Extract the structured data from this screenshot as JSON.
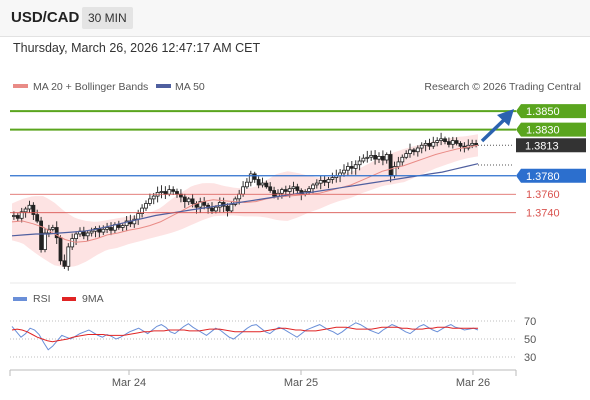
{
  "header": {
    "pair": "USD/CAD",
    "timeframe": "30 MIN"
  },
  "timestamp": "Thursday, March 26, 2026 12:47:17 AM CET",
  "legend": {
    "ma20_bb": "MA 20 + Bollinger Bands",
    "ma50": "MA 50",
    "rsi": "RSI",
    "ma9": "9MA"
  },
  "credit": "Research © 2026 Trading Central",
  "colors": {
    "resistance": "#5aa51e",
    "support": "#2c6fce",
    "minor": "#d9534f",
    "price": "#333333",
    "ma20": "#e98b86",
    "band": "#fde3e3",
    "ma50": "#4f5f9f",
    "rsi": "#6a8fd8",
    "ma9": "#e02424"
  },
  "chart_data": [
    {
      "type": "candlestick",
      "x_ticks": [
        "Mar 24",
        "Mar 25",
        "Mar 26"
      ],
      "ylim": [
        1.3665,
        1.3862
      ],
      "close_path": [
        1.3737,
        1.3734,
        1.3741,
        1.3744,
        1.3748,
        1.3738,
        1.3731,
        1.37,
        1.3718,
        1.3722,
        1.3724,
        1.3713,
        1.3688,
        1.3682,
        1.3703,
        1.3712,
        1.3717,
        1.372,
        1.3715,
        1.3718,
        1.372,
        1.3723,
        1.3719,
        1.3722,
        1.3724,
        1.3721,
        1.3727,
        1.3724,
        1.3726,
        1.3731,
        1.3728,
        1.3733,
        1.3739,
        1.3745,
        1.375,
        1.3755,
        1.3758,
        1.3762,
        1.3763,
        1.376,
        1.3765,
        1.3763,
        1.376,
        1.3757,
        1.3752,
        1.3755,
        1.375,
        1.3746,
        1.3752,
        1.3748,
        1.3745,
        1.3742,
        1.3746,
        1.3751,
        1.3747,
        1.3742,
        1.3749,
        1.3755,
        1.376,
        1.3768,
        1.3773,
        1.3782,
        1.3776,
        1.377,
        1.3772,
        1.3768,
        1.3764,
        1.3758,
        1.3761,
        1.3765,
        1.3763,
        1.3766,
        1.3768,
        1.3764,
        1.376,
        1.3763,
        1.3766,
        1.377,
        1.3772,
        1.3775,
        1.3773,
        1.3776,
        1.3778,
        1.378,
        1.3783,
        1.3786,
        1.379,
        1.3788,
        1.3792,
        1.3796,
        1.3799,
        1.38,
        1.3802,
        1.3798,
        1.3801,
        1.3797,
        1.3803,
        1.378,
        1.379,
        1.3795,
        1.38,
        1.3804,
        1.3808,
        1.3806,
        1.381,
        1.3813,
        1.3815,
        1.3812,
        1.3816,
        1.3818,
        1.382,
        1.3817,
        1.3814,
        1.3818,
        1.3815,
        1.3812,
        1.381,
        1.3813,
        1.3815,
        1.3813
      ],
      "ma20": [
        1.373,
        1.3731,
        1.3728,
        1.3724,
        1.3717,
        1.3711,
        1.3708,
        1.3709,
        1.3712,
        1.3716,
        1.3718,
        1.3721,
        1.3723,
        1.3726,
        1.373,
        1.3736,
        1.3742,
        1.3748,
        1.3752,
        1.3754,
        1.3753,
        1.3752,
        1.3751,
        1.3752,
        1.3755,
        1.3757,
        1.3758,
        1.3759,
        1.376,
        1.3761,
        1.3764,
        1.3767,
        1.377,
        1.3775,
        1.378,
        1.3785,
        1.3788,
        1.3791,
        1.3795,
        1.3799,
        1.3803,
        1.3806,
        1.3809,
        1.3811,
        1.3813
      ],
      "ma50": [
        1.3715,
        1.3716,
        1.3717,
        1.3717,
        1.3718,
        1.3719,
        1.372,
        1.3722,
        1.3725,
        1.3728,
        1.3731,
        1.3734,
        1.3737,
        1.3739,
        1.3741,
        1.3743,
        1.3745,
        1.3747,
        1.3749,
        1.3751,
        1.3753,
        1.3755,
        1.3757,
        1.3759,
        1.3761,
        1.3762,
        1.3764,
        1.3766,
        1.3768,
        1.377,
        1.3772,
        1.3774,
        1.3776,
        1.3778,
        1.378,
        1.3782,
        1.3784,
        1.3787,
        1.379,
        1.3793
      ],
      "bb_half_width": [
        0.002,
        0.0024,
        0.003,
        0.0034,
        0.0034,
        0.003,
        0.0026,
        0.0022,
        0.0018,
        0.0016,
        0.0016,
        0.0015,
        0.0014,
        0.0014,
        0.0015,
        0.0018,
        0.002,
        0.0021,
        0.002,
        0.0018,
        0.0016,
        0.0015,
        0.0015,
        0.0016,
        0.002,
        0.0025,
        0.0027,
        0.0024,
        0.002,
        0.0017,
        0.0015,
        0.0014,
        0.0014,
        0.0014,
        0.0015,
        0.0016,
        0.0017,
        0.0018,
        0.0017,
        0.0016,
        0.0015,
        0.0014,
        0.0013,
        0.0012,
        0.0012
      ],
      "levels": [
        {
          "value": 1.385,
          "label": "1.3850",
          "kind": "resistance"
        },
        {
          "value": 1.383,
          "label": "1.3830",
          "kind": "resistance"
        },
        {
          "value": 1.3813,
          "label": "1.3813",
          "kind": "price"
        },
        {
          "value": 1.378,
          "label": "1.3780",
          "kind": "support"
        },
        {
          "value": 1.376,
          "label": "1.3760",
          "kind": "minor"
        },
        {
          "value": 1.374,
          "label": "1.3740",
          "kind": "minor"
        }
      ],
      "forecast_arrow": "up"
    },
    {
      "type": "line",
      "y_ticks": [
        70,
        50,
        30
      ],
      "ylim": [
        20,
        80
      ],
      "rsi": [
        64,
        58,
        52,
        56,
        62,
        60,
        55,
        46,
        38,
        42,
        48,
        54,
        52,
        50,
        53,
        56,
        58,
        60,
        57,
        54,
        52,
        55,
        53,
        50,
        52,
        55,
        58,
        60,
        62,
        59,
        56,
        60,
        64,
        66,
        63,
        58,
        56,
        60,
        64,
        67,
        63,
        60,
        57,
        54,
        58,
        62,
        60,
        56,
        52,
        50,
        54,
        58,
        62,
        65,
        66,
        62,
        58,
        56,
        60,
        63,
        61,
        58,
        55,
        52,
        56,
        60,
        62,
        64,
        66,
        63,
        60,
        58,
        55,
        58,
        62,
        65,
        68,
        66,
        63,
        60,
        58,
        56,
        60,
        63,
        66,
        64,
        61,
        58,
        56,
        60,
        64,
        66,
        63,
        60,
        58,
        61,
        64,
        66,
        63,
        62,
        60,
        61,
        62,
        60
      ],
      "ma9": [
        60,
        61,
        60,
        58,
        55,
        52,
        50,
        48,
        47,
        48,
        49,
        50,
        52,
        53,
        54,
        55,
        55,
        55,
        55,
        54,
        54,
        54,
        54,
        55,
        56,
        57,
        58,
        58,
        59,
        59,
        59,
        60,
        60,
        60,
        60,
        59,
        59,
        59,
        60,
        61,
        61,
        61,
        60,
        59,
        58,
        58,
        58,
        58,
        58,
        58,
        59,
        60,
        61,
        62,
        62,
        61,
        60,
        60,
        59,
        59,
        59,
        60,
        61,
        62,
        63,
        63,
        63,
        62,
        61,
        61,
        61,
        61,
        62,
        63,
        63,
        63,
        63,
        62,
        62,
        61,
        61,
        61,
        62,
        62,
        63,
        63,
        63,
        62,
        62,
        62,
        62,
        62,
        62
      ]
    }
  ]
}
